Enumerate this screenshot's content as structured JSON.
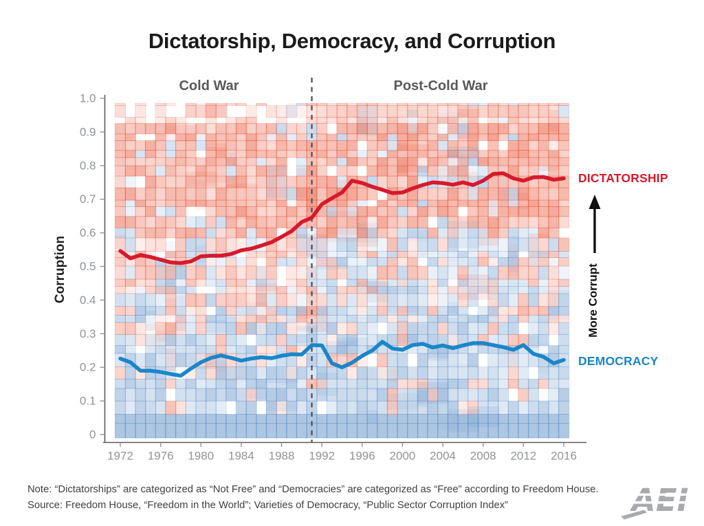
{
  "title": "Dictatorship, Democracy, and Corruption",
  "era_labels": {
    "cold_war": "Cold War",
    "post_cold_war": "Post-Cold War"
  },
  "right_labels": {
    "dictatorship": "DICTATORSHIP",
    "democracy": "DEMOCRACY",
    "more_corrupt": "More Corrupt"
  },
  "notes": {
    "line1": "Note: “Dictatorships” are categorized as “Not Free” and “Democracies” are categorized as “Free” according to Freedom House.",
    "line2": "Source: Freedom House, “Freedom in the World”; Varieties of Democracy, “Public Sector Corruption Index”"
  },
  "logo_text": "AEI",
  "colors": {
    "dictatorship_line": "#d61a2d",
    "democracy_line": "#1a86c9",
    "axis": "#58595b",
    "tick_text": "#909396",
    "divider": "#55575b",
    "era_text": "#58595b",
    "note_text": "#414042",
    "logo_gray": "#a8aaad"
  },
  "chart_data": {
    "type": "line",
    "title": "Dictatorship, Democracy, and Corruption",
    "xlabel": "",
    "ylabel": "Corruption",
    "ylim": [
      0,
      1.0
    ],
    "xlim": [
      1971,
      2017
    ],
    "grid": false,
    "legend_position": "right-edge-labels",
    "divider_year": 1991,
    "divider_label_left": "Cold War",
    "divider_label_right": "Post-Cold War",
    "x": [
      1972,
      1973,
      1974,
      1975,
      1976,
      1977,
      1978,
      1979,
      1980,
      1981,
      1982,
      1983,
      1984,
      1985,
      1986,
      1987,
      1988,
      1989,
      1990,
      1991,
      1992,
      1993,
      1994,
      1995,
      1996,
      1997,
      1998,
      1999,
      2000,
      2001,
      2002,
      2003,
      2004,
      2005,
      2006,
      2007,
      2008,
      2009,
      2010,
      2011,
      2012,
      2013,
      2014,
      2015,
      2016
    ],
    "x_tick_labels": [
      1972,
      1976,
      1980,
      1984,
      1988,
      1992,
      1996,
      2000,
      2004,
      2008,
      2012,
      2016
    ],
    "y_ticks": [
      0,
      0.1,
      0.2,
      0.3,
      0.4,
      0.5,
      0.6,
      0.7,
      0.8,
      0.9,
      1.0
    ],
    "y_tick_labels": [
      "0",
      "0.1",
      "0.2",
      "0.3",
      "0.4",
      "0.5",
      "0.6",
      "0.7",
      "0.8",
      "0.9",
      "1.0"
    ],
    "series": [
      {
        "name": "DICTATORSHIP",
        "color": "#d61a2d",
        "values": [
          0.546,
          0.524,
          0.534,
          0.528,
          0.52,
          0.512,
          0.51,
          0.515,
          0.53,
          0.532,
          0.532,
          0.537,
          0.548,
          0.553,
          0.562,
          0.572,
          0.588,
          0.605,
          0.632,
          0.645,
          0.685,
          0.703,
          0.72,
          0.755,
          0.748,
          0.737,
          0.728,
          0.718,
          0.72,
          0.732,
          0.742,
          0.75,
          0.748,
          0.743,
          0.75,
          0.742,
          0.755,
          0.775,
          0.777,
          0.762,
          0.755,
          0.765,
          0.766,
          0.758,
          0.762
        ]
      },
      {
        "name": "DEMOCRACY",
        "color": "#1a86c9",
        "values": [
          0.226,
          0.215,
          0.19,
          0.19,
          0.186,
          0.18,
          0.175,
          0.196,
          0.215,
          0.228,
          0.235,
          0.228,
          0.22,
          0.226,
          0.23,
          0.227,
          0.234,
          0.239,
          0.238,
          0.266,
          0.265,
          0.212,
          0.2,
          0.214,
          0.234,
          0.25,
          0.276,
          0.256,
          0.252,
          0.266,
          0.27,
          0.259,
          0.265,
          0.257,
          0.265,
          0.272,
          0.272,
          0.266,
          0.26,
          0.252,
          0.266,
          0.24,
          0.231,
          0.212,
          0.222
        ]
      }
    ],
    "background": {
      "description": "translucent mosaic heatmap of individual country corruption scores; red = dictatorships (dense 0.6-0.95), blue = democracies (dense 0-0.35), mixed mid-band; bluer mid-band after 1991",
      "seed": 1972,
      "red_rgb": [
        232,
        78,
        48
      ],
      "blue_rgb": [
        92,
        142,
        198
      ],
      "solid_blue_band_top": 0.07
    }
  }
}
